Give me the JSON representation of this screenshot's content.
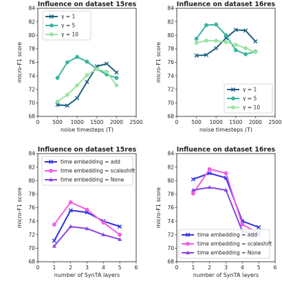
{
  "chart_data": [
    {
      "type": "line",
      "title": "Influence on dataset 15res",
      "xlabel": "noise timesteps (T)",
      "ylabel": "micro-F1 score",
      "xlim": [
        0,
        2500
      ],
      "ylim": [
        68,
        84
      ],
      "xticks": [
        "0",
        "500",
        "1000",
        "1500",
        "2000",
        "2500"
      ],
      "yticks": [
        "68",
        "70",
        "72",
        "74",
        "76",
        "78",
        "80",
        "82",
        "84"
      ],
      "legend_position": "top-left",
      "grid": false,
      "x": [
        500,
        750,
        1000,
        1250,
        1500,
        1750,
        2000
      ],
      "series": [
        {
          "name": "γ = 1",
          "color": "#1b5f80",
          "marker": "x",
          "values": [
            69.7,
            69.6,
            70.7,
            73.1,
            75.4,
            75.8,
            74.5
          ]
        },
        {
          "name": "γ = 5",
          "color": "#3bb39e",
          "marker": "o",
          "values": [
            73.7,
            76.0,
            76.8,
            76.1,
            75.0,
            74.2,
            73.7
          ]
        },
        {
          "name": "γ = 10",
          "color": "#9be3a2",
          "marker": "o",
          "values": [
            70.2,
            71.2,
            72.6,
            74.1,
            75.0,
            74.6,
            72.6
          ]
        }
      ]
    },
    {
      "type": "line",
      "title": "Influence on dataset 16res",
      "xlabel": "noise timesteps (T)",
      "ylabel": "micro-F1 score",
      "xlim": [
        0,
        2500
      ],
      "ylim": [
        68,
        84
      ],
      "xticks": [
        "0",
        "500",
        "1000",
        "1500",
        "2000",
        "2500"
      ],
      "yticks": [
        "68",
        "70",
        "72",
        "74",
        "76",
        "78",
        "80",
        "82",
        "84"
      ],
      "legend_position": "bottom-right",
      "grid": false,
      "x": [
        500,
        750,
        1000,
        1250,
        1500,
        1750,
        2000
      ],
      "series": [
        {
          "name": "γ = 1",
          "color": "#1b5f80",
          "marker": "x",
          "values": [
            77.0,
            77.1,
            78.1,
            79.6,
            80.8,
            80.7,
            79.1
          ]
        },
        {
          "name": "γ = 5",
          "color": "#3bb39e",
          "marker": "o",
          "values": [
            79.5,
            81.5,
            81.6,
            80.0,
            77.8,
            77.2,
            77.6
          ]
        },
        {
          "name": "γ = 10",
          "color": "#9be3a2",
          "marker": "o",
          "values": [
            78.9,
            79.2,
            79.2,
            79.0,
            78.6,
            78.1,
            77.5
          ]
        }
      ]
    },
    {
      "type": "line",
      "title": "Influence on dataset 15res",
      "xlabel": "number of SynTA layers",
      "ylabel": "micro-F1 score",
      "xlim": [
        0,
        6
      ],
      "ylim": [
        68,
        84
      ],
      "xticks": [
        "0",
        "1",
        "2",
        "3",
        "4",
        "5",
        "6"
      ],
      "yticks": [
        "68",
        "70",
        "72",
        "74",
        "76",
        "78",
        "80",
        "82",
        "84"
      ],
      "legend_position": "top-left",
      "grid": false,
      "x": [
        1,
        2,
        3,
        4,
        5
      ],
      "series": [
        {
          "name": "time embedding = add",
          "color": "#2b2fe0",
          "marker": "x",
          "values": [
            71.1,
            75.6,
            75.3,
            74.0,
            73.2
          ]
        },
        {
          "name": "time embedding = scaleshift",
          "color": "#f25ce6",
          "marker": "o",
          "values": [
            73.5,
            76.8,
            75.7,
            73.8,
            72.0
          ]
        },
        {
          "name": "time embedding = None",
          "color": "#8b45e0",
          "marker": "^",
          "values": [
            70.3,
            73.2,
            72.9,
            72.0,
            71.3
          ]
        }
      ]
    },
    {
      "type": "line",
      "title": "Influence on dataset 16res",
      "xlabel": "number of SynTA layers",
      "ylabel": "micro-F1 score",
      "xlim": [
        0,
        6
      ],
      "ylim": [
        68,
        84
      ],
      "xticks": [
        "0",
        "1",
        "2",
        "3",
        "4",
        "5",
        "6"
      ],
      "yticks": [
        "68",
        "70",
        "72",
        "74",
        "76",
        "78",
        "80",
        "82",
        "84"
      ],
      "legend_position": "bottom-right",
      "grid": false,
      "x": [
        1,
        2,
        3,
        4,
        5
      ],
      "series": [
        {
          "name": "time embedding = add",
          "color": "#2b2fe0",
          "marker": "x",
          "values": [
            80.2,
            81.1,
            80.4,
            74.0,
            73.1
          ]
        },
        {
          "name": "time embedding = scaleshift",
          "color": "#f25ce6",
          "marker": "o",
          "values": [
            78.1,
            81.7,
            81.1,
            73.5,
            72.2
          ]
        },
        {
          "name": "time embedding = None",
          "color": "#8b45e0",
          "marker": "^",
          "values": [
            78.6,
            79.0,
            78.6,
            72.5,
            72.0
          ]
        }
      ]
    }
  ]
}
